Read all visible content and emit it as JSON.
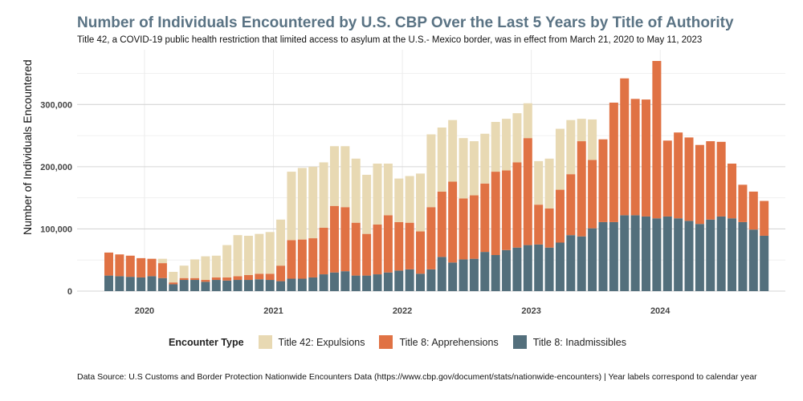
{
  "header": {
    "title": "Number of Individuals Encountered by U.S. CBP Over the Last 5 Years by Title of Authority",
    "subtitle": "Title 42, a COVID-19 public health restriction that limited access to asylum at the U.S.- Mexico border, was in effect from March 21, 2020 to May 11, 2023"
  },
  "legend": {
    "title": "Encounter Type",
    "items": [
      {
        "label": "Title 42: Expulsions",
        "color": "#e8d9b3"
      },
      {
        "label": "Title 8: Apprehensions",
        "color": "#e07244"
      },
      {
        "label": "Title 8: Inadmissibles",
        "color": "#536f7c"
      }
    ]
  },
  "footer": {
    "source": "Data Source: U.S Customs and Border Protection Nationwide Encounters Data (https://www.cbp.gov/document/stats/nationwide-encounters) | Year labels correspond to calendar year"
  },
  "chart_data": {
    "type": "bar",
    "stacked": true,
    "title": "Number of Individuals Encountered by U.S. CBP Over the Last 5 Years by Title of Authority",
    "ylabel": "Number of Individuals Encountered",
    "xlabel": "",
    "ylim": [
      0,
      375000
    ],
    "yticks": [
      0,
      100000,
      200000,
      300000
    ],
    "ytick_labels": [
      "0",
      "100,000",
      "200,000",
      "300,000"
    ],
    "xticks": [
      "2020",
      "2021",
      "2022",
      "2023",
      "2024"
    ],
    "xtick_positions": [
      3,
      15,
      27,
      39,
      51
    ],
    "x_start": "2019-10",
    "series": [
      {
        "name": "Title 8: Inadmissibles",
        "color": "#536f7c",
        "values": [
          25000,
          24000,
          23000,
          22000,
          24000,
          21000,
          11000,
          18000,
          18000,
          15000,
          18000,
          17000,
          18000,
          18000,
          19000,
          18000,
          16000,
          20000,
          20000,
          22000,
          27000,
          30000,
          32000,
          25000,
          25000,
          27000,
          30000,
          33000,
          35000,
          28000,
          35000,
          55000,
          46000,
          51000,
          52000,
          63000,
          58000,
          66000,
          70000,
          74000,
          75000,
          70000,
          78000,
          90000,
          88000,
          101000,
          111000,
          111000,
          122000,
          122000,
          120000,
          117000,
          120000,
          117000,
          113000,
          108000,
          115000,
          120000,
          117000,
          111000,
          99000,
          89000
        ]
      },
      {
        "name": "Title 8: Apprehensions",
        "color": "#e07244",
        "values": [
          37000,
          35000,
          34000,
          31000,
          28000,
          24000,
          3000,
          3000,
          3000,
          3000,
          4000,
          5000,
          6000,
          8000,
          9000,
          10000,
          25000,
          62000,
          63000,
          63000,
          75000,
          107000,
          103000,
          85000,
          67000,
          80000,
          92000,
          78000,
          75000,
          68000,
          100000,
          105000,
          130000,
          98000,
          102000,
          110000,
          134000,
          128000,
          137000,
          172000,
          64000,
          63000,
          85000,
          98000,
          153000,
          110000,
          133000,
          192000,
          220000,
          187000,
          188000,
          253000,
          122000,
          138000,
          134000,
          127000,
          126000,
          120000,
          88000,
          60000,
          61000,
          56000
        ]
      },
      {
        "name": "Title 42: Expulsions",
        "color": "#e8d9b3",
        "values": [
          0,
          0,
          0,
          0,
          0,
          7000,
          17000,
          20000,
          30000,
          38000,
          35000,
          52000,
          66000,
          63000,
          64000,
          67000,
          74000,
          110000,
          115000,
          115000,
          105000,
          96000,
          98000,
          103000,
          95000,
          98000,
          83000,
          70000,
          75000,
          93000,
          117000,
          103000,
          99000,
          97000,
          87000,
          80000,
          80000,
          83000,
          79000,
          56000,
          70000,
          80000,
          98000,
          87000,
          36000,
          65000,
          0,
          0,
          0,
          0,
          0,
          0,
          0,
          0,
          0,
          0,
          0,
          0,
          0,
          0,
          0,
          0
        ]
      }
    ]
  }
}
